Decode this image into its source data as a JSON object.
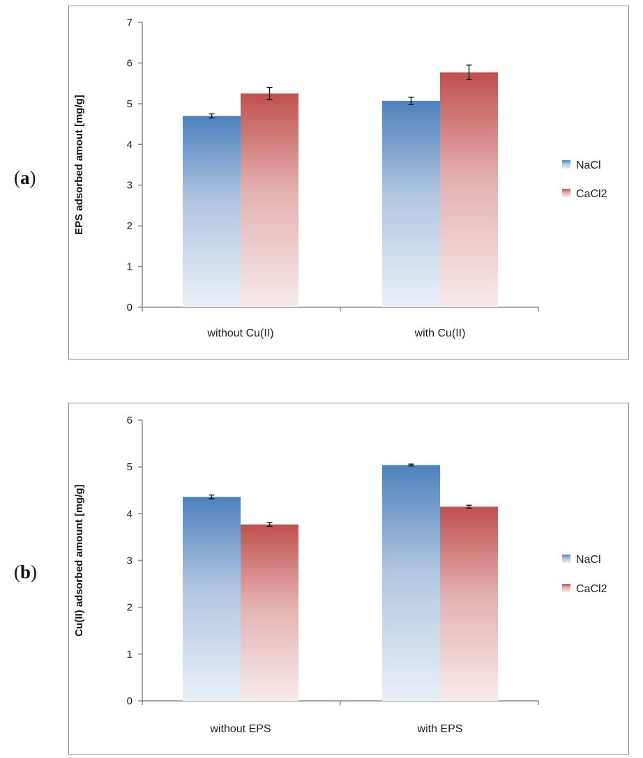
{
  "panels": [
    {
      "label_open": "(",
      "label_letter": "a",
      "label_close": ")"
    },
    {
      "label_open": "(",
      "label_letter": "b",
      "label_close": ")"
    }
  ],
  "colors": {
    "NaCl": "#4f81bd",
    "CaCl2": "#c0504d"
  },
  "chart_data": [
    {
      "type": "bar",
      "title": "",
      "xlabel": "",
      "ylabel": "EPS adsorbed amout [mg/g]",
      "ylim": [
        0,
        7
      ],
      "yticks": [
        0,
        1,
        2,
        3,
        4,
        5,
        6,
        7
      ],
      "categories": [
        "without Cu(II)",
        "with Cu(II)"
      ],
      "series": [
        {
          "name": "NaCl",
          "values": [
            4.7,
            5.07
          ],
          "errors": [
            0.05,
            0.09
          ]
        },
        {
          "name": "CaCl2",
          "values": [
            5.25,
            5.77
          ],
          "errors": [
            0.15,
            0.18
          ]
        }
      ],
      "legend": "right",
      "grid": false
    },
    {
      "type": "bar",
      "title": "",
      "xlabel": "",
      "ylabel": "Cu(II) adsorbed amount [mg/g]",
      "ylim": [
        0,
        6
      ],
      "yticks": [
        0,
        1,
        2,
        3,
        4,
        5,
        6
      ],
      "categories": [
        "without EPS",
        "with EPS"
      ],
      "series": [
        {
          "name": "NaCl",
          "values": [
            4.36,
            5.04
          ],
          "errors": [
            0.04,
            0.02
          ]
        },
        {
          "name": "CaCl2",
          "values": [
            3.77,
            4.15
          ],
          "errors": [
            0.04,
            0.03
          ]
        }
      ],
      "legend": "right",
      "grid": false
    }
  ]
}
